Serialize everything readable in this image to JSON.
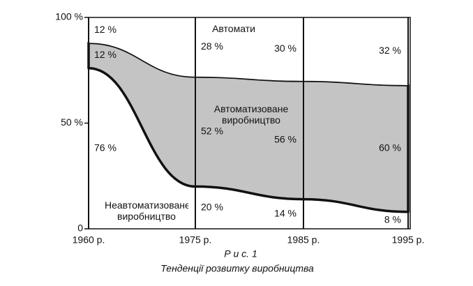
{
  "chart_data": {
    "type": "stacked_area",
    "figure_label": "Р и с.  1",
    "title": "Тенденції розвитку виробництва",
    "categories": [
      "1960 р.",
      "1975 р.",
      "1985 р.",
      "1995 р."
    ],
    "ylim": [
      0,
      100
    ],
    "yticks": [
      0,
      {
        "value": 50,
        "label": "50 %"
      },
      {
        "value": 100,
        "label": "100 %"
      }
    ],
    "series": [
      {
        "name": "Неавтоматизоване виробництво",
        "color": "#ffffff",
        "values": [
          76,
          20,
          14,
          8
        ],
        "value_labels": [
          "76 %",
          "20 %",
          "14 %",
          "8 %"
        ]
      },
      {
        "name": "Автоматизоване виробництво",
        "color": "#c4c4c4",
        "values": [
          12,
          52,
          56,
          60
        ],
        "value_labels": [
          "12 %",
          "52 %",
          "56 %",
          "60 %"
        ]
      },
      {
        "name": "Автомати",
        "color": "#ffffff",
        "values": [
          12,
          28,
          30,
          32
        ],
        "value_labels": [
          "12 %",
          "28 %",
          "30 %",
          "32 %"
        ]
      }
    ]
  }
}
